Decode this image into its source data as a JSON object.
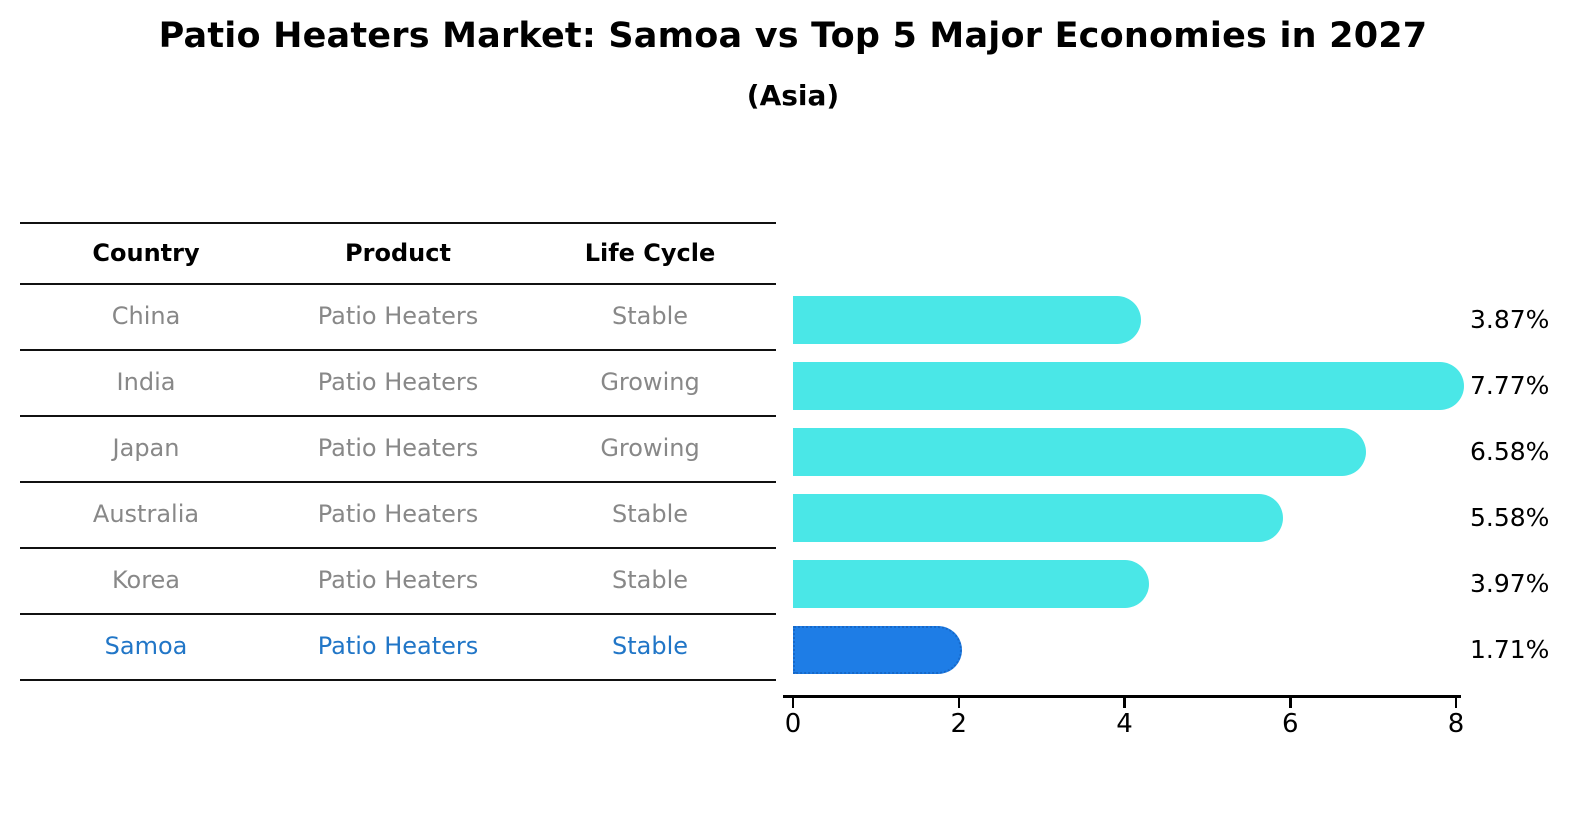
{
  "title": "Patio Heaters Market: Samoa vs Top 5 Major Economies in 2027",
  "subtitle": "(Asia)",
  "table": {
    "headers": [
      "Country",
      "Product",
      "Life Cycle"
    ],
    "rows": [
      {
        "country": "China",
        "product": "Patio Heaters",
        "life_cycle": "Stable"
      },
      {
        "country": "India",
        "product": "Patio Heaters",
        "life_cycle": "Growing"
      },
      {
        "country": "Japan",
        "product": "Patio Heaters",
        "life_cycle": "Growing"
      },
      {
        "country": "Australia",
        "product": "Patio Heaters",
        "life_cycle": "Stable"
      },
      {
        "country": "Korea",
        "product": "Patio Heaters",
        "life_cycle": "Stable"
      },
      {
        "country": "Samoa",
        "product": "Patio Heaters",
        "life_cycle": "Stable"
      }
    ],
    "highlight_row": "Samoa"
  },
  "chart_data": {
    "type": "bar",
    "orientation": "horizontal",
    "title": "Patio Heaters Market: Samoa vs Top 5 Major Economies in 2027",
    "subtitle": "(Asia)",
    "categories": [
      "China",
      "India",
      "Japan",
      "Australia",
      "Korea",
      "Samoa"
    ],
    "values": [
      3.87,
      7.77,
      6.58,
      5.58,
      3.97,
      1.71
    ],
    "value_labels": [
      "3.87%",
      "7.77%",
      "6.58%",
      "5.58%",
      "3.97%",
      "1.71%"
    ],
    "unit": "%",
    "xticks": [
      "0",
      "2",
      "4",
      "6",
      "8"
    ],
    "xlim": [
      0,
      8.16
    ],
    "grid": false,
    "legend": "none",
    "highlight_index": 5,
    "colors": {
      "bar": "#4AE7E7",
      "highlight_bar": "#1E7DE6",
      "highlight_border": "#1668C8",
      "highlight_text": "#2176C7",
      "table_text": "#888888",
      "text": "#000000"
    }
  }
}
